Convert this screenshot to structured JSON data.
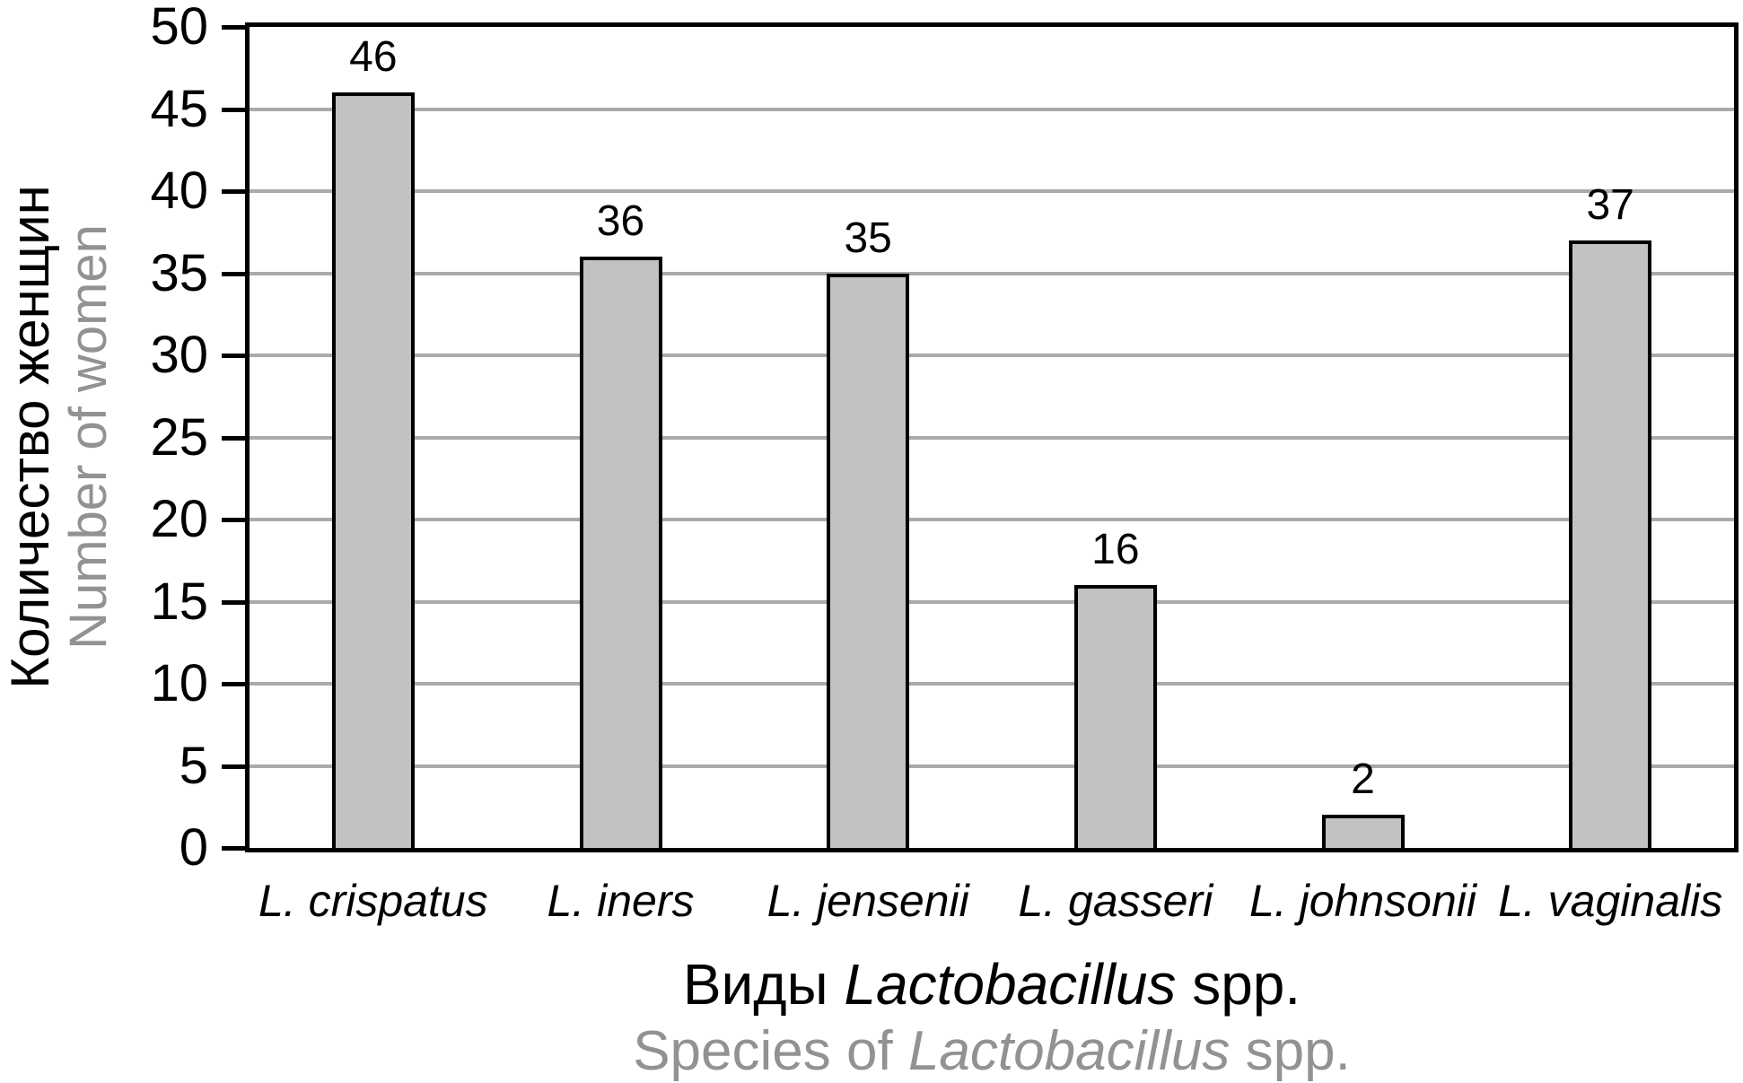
{
  "chart_data": {
    "type": "bar",
    "categories": [
      "L. crispatus",
      "L. iners",
      "L. jensenii",
      "L. gasseri",
      "L. johnsonii",
      "L. vaginalis"
    ],
    "values": [
      46,
      36,
      35,
      16,
      2,
      37
    ],
    "bar_value_labels": [
      "46",
      "36",
      "35",
      "16",
      "2",
      "37"
    ],
    "ylim": [
      0,
      50
    ],
    "ytick_step": 5,
    "yticks": [
      0,
      5,
      10,
      15,
      20,
      25,
      30,
      35,
      40,
      45,
      50
    ],
    "grid": "horizontal",
    "legend": "none",
    "ylabel": {
      "line1": "Количество женщин",
      "line2": "Number of women"
    },
    "xlabel": {
      "line1_prefix": "Виды ",
      "line1_italic": "Lactobacillus",
      "line1_suffix": " spp.",
      "line2_prefix": "Species of ",
      "line2_italic": "Lactobacillus",
      "line2_suffix": " spp."
    },
    "colors": {
      "bar_fill": "#c0c2c4",
      "bar_border": "#000000",
      "axis": "#000000",
      "gridline": "#a8aaad",
      "primary_text": "#000000",
      "secondary_text": "#909294",
      "background": "#ffffff"
    }
  }
}
